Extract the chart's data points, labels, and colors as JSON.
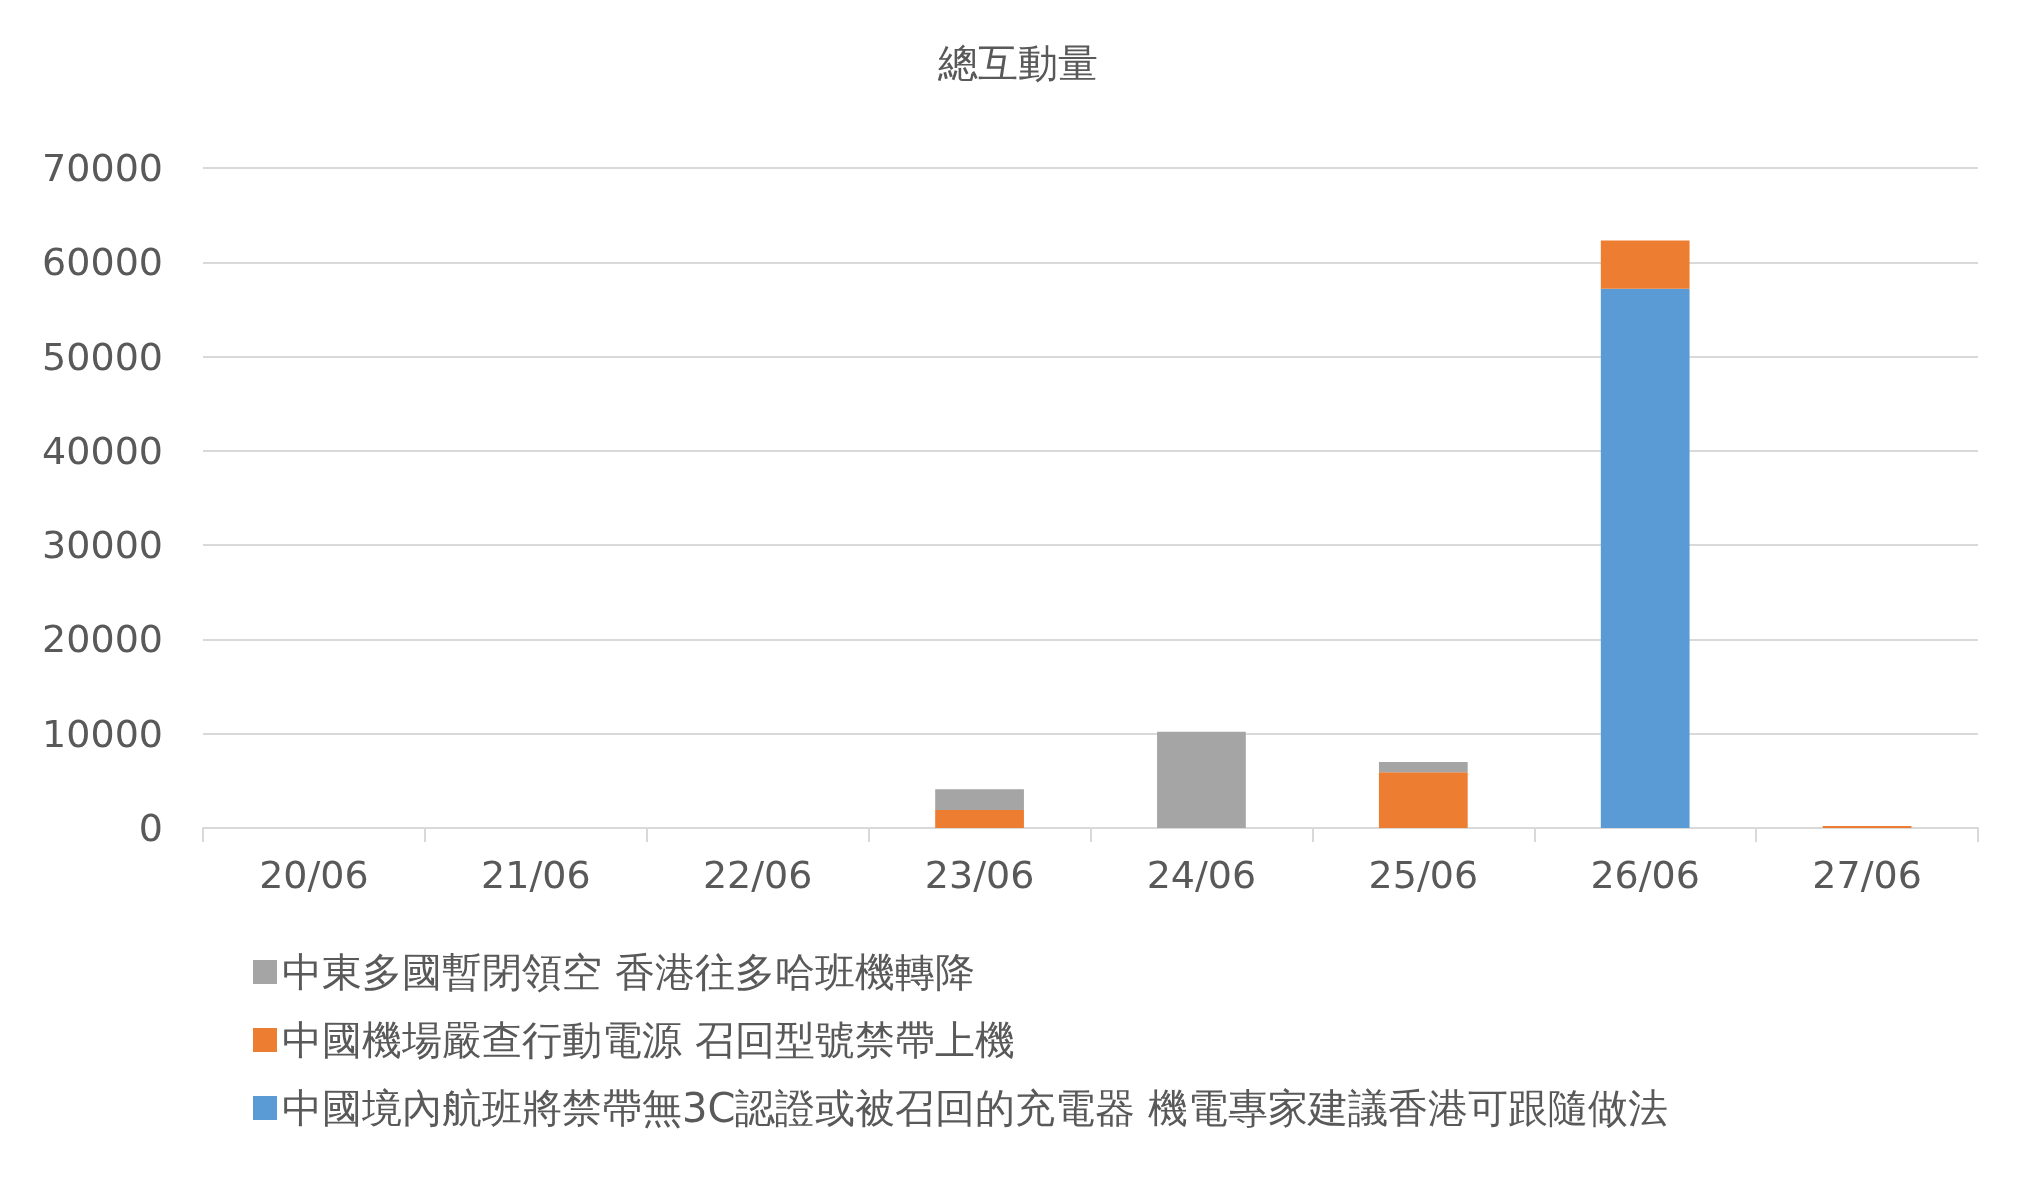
{
  "chart_data": {
    "type": "bar",
    "title": "總互動量",
    "categories": [
      "20/06",
      "21/06",
      "22/06",
      "23/06",
      "24/06",
      "25/06",
      "26/06",
      "27/06"
    ],
    "stacked": true,
    "series": [
      {
        "name": "中國境內航班將禁帶無3C認證或被召回的充電器 機電專家建議香港可跟隨做法",
        "color": "#5b9bd5",
        "values": [
          0,
          0,
          0,
          0,
          0,
          0,
          57200,
          0
        ]
      },
      {
        "name": "中國機場嚴查行動電源 召回型號禁帶上機",
        "color": "#ed7d31",
        "values": [
          0,
          0,
          0,
          1900,
          0,
          5900,
          5100,
          200
        ]
      },
      {
        "name": "中東多國暫閉領空 香港往多哈班機轉降",
        "color": "#a5a5a5",
        "values": [
          0,
          0,
          0,
          2200,
          10200,
          1100,
          null,
          0
        ]
      }
    ],
    "ylim": [
      0,
      70000
    ],
    "yticks": [
      0,
      10000,
      20000,
      30000,
      40000,
      50000,
      60000,
      70000
    ],
    "grid": "y",
    "legend": "bottom"
  }
}
